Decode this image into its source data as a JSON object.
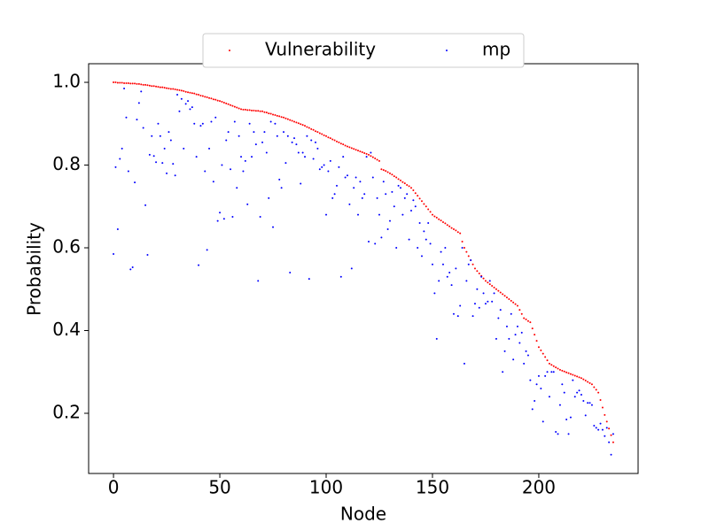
{
  "chart_data": {
    "type": "scatter",
    "xlabel": "Node",
    "ylabel": "Probability",
    "xlim": [
      -11.7,
      246.7
    ],
    "ylim": [
      0.0545,
      1.045
    ],
    "xticks": [
      0,
      50,
      100,
      150,
      200
    ],
    "yticks": [
      0.2,
      0.4,
      0.6,
      0.8,
      {
        "value": 1,
        "label": "1.0"
      }
    ],
    "grid": false,
    "legend": "upper center",
    "x": [
      0,
      1,
      2,
      3,
      4,
      5,
      6,
      7,
      8,
      9,
      10,
      11,
      12,
      13,
      14,
      15,
      16,
      17,
      18,
      19,
      20,
      21,
      22,
      23,
      24,
      25,
      26,
      27,
      28,
      29,
      30,
      31,
      32,
      33,
      34,
      35,
      36,
      37,
      38,
      39,
      40,
      41,
      42,
      43,
      44,
      45,
      46,
      47,
      48,
      49,
      50,
      51,
      52,
      53,
      54,
      55,
      56,
      57,
      58,
      59,
      60,
      61,
      62,
      63,
      64,
      65,
      66,
      67,
      68,
      69,
      70,
      71,
      72,
      73,
      74,
      75,
      76,
      77,
      78,
      79,
      80,
      81,
      82,
      83,
      84,
      85,
      86,
      87,
      88,
      89,
      90,
      91,
      92,
      93,
      94,
      95,
      96,
      97,
      98,
      99,
      100,
      101,
      102,
      103,
      104,
      105,
      106,
      107,
      108,
      109,
      110,
      111,
      112,
      113,
      114,
      115,
      116,
      117,
      118,
      119,
      120,
      121,
      122,
      123,
      124,
      125,
      126,
      127,
      128,
      129,
      130,
      131,
      132,
      133,
      134,
      135,
      136,
      137,
      138,
      139,
      140,
      141,
      142,
      143,
      144,
      145,
      146,
      147,
      148,
      149,
      150,
      151,
      152,
      153,
      154,
      155,
      156,
      157,
      158,
      159,
      160,
      161,
      162,
      163,
      164,
      165,
      166,
      167,
      168,
      169,
      170,
      171,
      172,
      173,
      174,
      175,
      176,
      177,
      178,
      179,
      180,
      181,
      182,
      183,
      184,
      185,
      186,
      187,
      188,
      189,
      190,
      191,
      192,
      193,
      194,
      195,
      196,
      197,
      198,
      199,
      200,
      201,
      202,
      203,
      204,
      205,
      206,
      207,
      208,
      209,
      210,
      211,
      212,
      213,
      214,
      215,
      216,
      217,
      218,
      219,
      220,
      221,
      222,
      223,
      224,
      225,
      226,
      227,
      228,
      229,
      230,
      231,
      232,
      233,
      234,
      235
    ],
    "series": [
      {
        "name": "Vulnerability",
        "color": "#ff0000",
        "values": [
          1.0,
          1.0,
          0.999,
          0.999,
          0.999,
          0.998,
          0.998,
          0.998,
          0.997,
          0.997,
          0.997,
          0.996,
          0.996,
          0.995,
          0.994,
          0.994,
          0.993,
          0.992,
          0.991,
          0.991,
          0.99,
          0.989,
          0.988,
          0.988,
          0.987,
          0.986,
          0.985,
          0.984,
          0.984,
          0.983,
          0.982,
          0.981,
          0.98,
          0.979,
          0.977,
          0.976,
          0.975,
          0.974,
          0.973,
          0.971,
          0.97,
          0.968,
          0.967,
          0.965,
          0.964,
          0.962,
          0.961,
          0.959,
          0.958,
          0.956,
          0.955,
          0.953,
          0.951,
          0.949,
          0.947,
          0.945,
          0.943,
          0.941,
          0.939,
          0.937,
          0.935,
          0.934,
          0.934,
          0.933,
          0.933,
          0.932,
          0.932,
          0.931,
          0.931,
          0.93,
          0.93,
          0.928,
          0.927,
          0.925,
          0.924,
          0.922,
          0.921,
          0.919,
          0.918,
          0.916,
          0.915,
          0.913,
          0.911,
          0.909,
          0.907,
          0.905,
          0.903,
          0.901,
          0.899,
          0.897,
          0.895,
          0.892,
          0.89,
          0.887,
          0.885,
          0.882,
          0.88,
          0.877,
          0.875,
          0.872,
          0.87,
          0.867,
          0.865,
          0.862,
          0.86,
          0.857,
          0.855,
          0.852,
          0.85,
          0.847,
          0.845,
          0.843,
          0.841,
          0.839,
          0.837,
          0.835,
          0.833,
          0.831,
          0.829,
          0.827,
          0.825,
          0.822,
          0.819,
          0.816,
          0.813,
          0.81,
          0.79,
          0.788,
          0.786,
          0.783,
          0.78,
          0.777,
          0.773,
          0.77,
          0.766,
          0.763,
          0.759,
          0.756,
          0.752,
          0.749,
          0.745,
          0.739,
          0.732,
          0.726,
          0.719,
          0.713,
          0.706,
          0.7,
          0.693,
          0.687,
          0.68,
          0.676,
          0.673,
          0.669,
          0.666,
          0.662,
          0.659,
          0.655,
          0.652,
          0.648,
          0.645,
          0.642,
          0.638,
          0.635,
          0.615,
          0.6,
          0.59,
          0.58,
          0.57,
          0.56,
          0.55,
          0.544,
          0.538,
          0.532,
          0.526,
          0.52,
          0.516,
          0.512,
          0.508,
          0.504,
          0.5,
          0.496,
          0.492,
          0.488,
          0.484,
          0.48,
          0.476,
          0.472,
          0.468,
          0.464,
          0.46,
          0.45,
          0.44,
          0.43,
          0.427,
          0.423,
          0.42,
          0.405,
          0.39,
          0.375,
          0.36,
          0.352,
          0.344,
          0.336,
          0.328,
          0.32,
          0.317,
          0.314,
          0.311,
          0.308,
          0.305,
          0.303,
          0.301,
          0.299,
          0.297,
          0.295,
          0.293,
          0.291,
          0.289,
          0.287,
          0.285,
          0.282,
          0.279,
          0.276,
          0.273,
          0.27,
          0.263,
          0.257,
          0.25,
          0.232,
          0.214,
          0.196,
          0.18,
          0.163,
          0.147,
          0.13
        ]
      },
      {
        "name": "mp",
        "color": "#0000ff",
        "values": [
          0.585,
          0.795,
          0.645,
          0.815,
          0.84,
          0.985,
          0.915,
          0.785,
          0.548,
          0.553,
          0.758,
          0.91,
          0.95,
          0.978,
          0.89,
          0.703,
          0.583,
          0.825,
          0.87,
          0.822,
          0.807,
          0.9,
          0.87,
          0.805,
          0.84,
          0.78,
          0.88,
          0.86,
          0.803,
          0.775,
          0.97,
          0.93,
          0.96,
          0.84,
          0.948,
          0.955,
          0.935,
          0.94,
          0.9,
          0.82,
          0.558,
          0.895,
          0.9,
          0.785,
          0.595,
          0.84,
          0.905,
          0.76,
          0.915,
          0.665,
          0.685,
          0.8,
          0.67,
          0.86,
          0.88,
          0.79,
          0.675,
          0.905,
          0.745,
          0.87,
          0.82,
          0.785,
          0.81,
          0.705,
          0.9,
          0.82,
          0.88,
          0.85,
          0.52,
          0.675,
          0.855,
          0.88,
          0.83,
          0.72,
          0.905,
          0.65,
          0.9,
          0.87,
          0.765,
          0.745,
          0.88,
          0.805,
          0.87,
          0.54,
          0.855,
          0.865,
          0.85,
          0.83,
          0.755,
          0.83,
          0.82,
          0.87,
          0.525,
          0.86,
          0.815,
          0.855,
          0.84,
          0.79,
          0.795,
          0.8,
          0.68,
          0.785,
          0.81,
          0.72,
          0.73,
          0.75,
          0.795,
          0.53,
          0.82,
          0.77,
          0.775,
          0.705,
          0.55,
          0.745,
          0.77,
          0.68,
          0.76,
          0.72,
          0.73,
          0.82,
          0.615,
          0.83,
          0.77,
          0.61,
          0.72,
          0.68,
          0.625,
          0.76,
          0.73,
          0.645,
          0.665,
          0.735,
          0.7,
          0.6,
          0.75,
          0.745,
          0.68,
          0.72,
          0.73,
          0.62,
          0.69,
          0.715,
          0.7,
          0.6,
          0.66,
          0.58,
          0.64,
          0.62,
          0.66,
          0.61,
          0.56,
          0.49,
          0.38,
          0.52,
          0.59,
          0.56,
          0.6,
          0.53,
          0.54,
          0.51,
          0.44,
          0.55,
          0.435,
          0.46,
          0.6,
          0.32,
          0.52,
          0.56,
          0.57,
          0.435,
          0.465,
          0.5,
          0.455,
          0.53,
          0.49,
          0.465,
          0.47,
          0.52,
          0.47,
          0.49,
          0.38,
          0.43,
          0.45,
          0.3,
          0.35,
          0.41,
          0.38,
          0.44,
          0.33,
          0.39,
          0.41,
          0.37,
          0.395,
          0.32,
          0.35,
          0.34,
          0.28,
          0.21,
          0.23,
          0.27,
          0.29,
          0.26,
          0.18,
          0.29,
          0.3,
          0.24,
          0.3,
          0.3,
          0.155,
          0.15,
          0.22,
          0.27,
          0.25,
          0.185,
          0.15,
          0.19,
          0.28,
          0.24,
          0.25,
          0.255,
          0.245,
          0.23,
          0.195,
          0.225,
          0.225,
          0.22,
          0.17,
          0.165,
          0.16,
          0.175,
          0.16,
          0.145,
          0.165,
          0.13,
          0.1,
          0.15
        ]
      }
    ]
  }
}
